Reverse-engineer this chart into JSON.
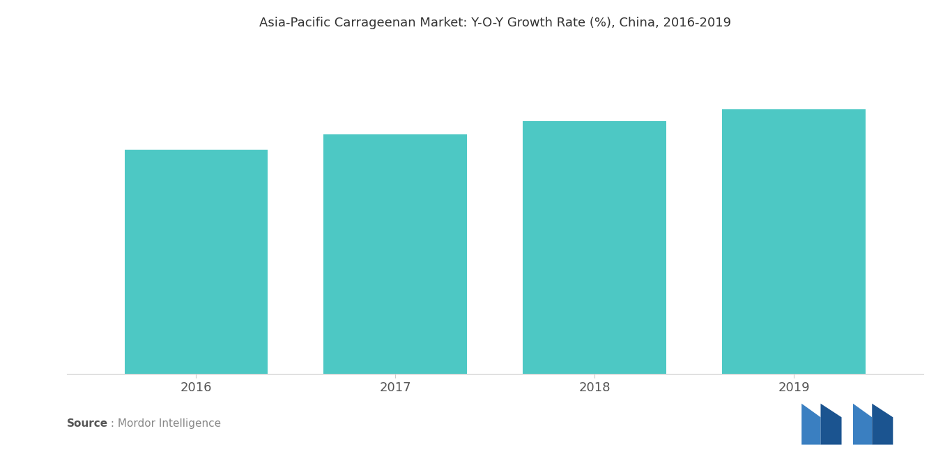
{
  "title": "Asia-Pacific Carrageenan Market: Y-O-Y Growth Rate (%), China, 2016-2019",
  "categories": [
    "2016",
    "2017",
    "2018",
    "2019"
  ],
  "values": [
    5.8,
    6.2,
    6.55,
    6.85
  ],
  "bar_color": "#4DC8C4",
  "ylim": [
    0,
    8.5
  ],
  "background_color": "#ffffff",
  "title_fontsize": 13,
  "tick_fontsize": 13,
  "source_bold": "Source",
  "source_regular": " : Mordor Intelligence",
  "logo_colors": [
    "#3A7FC1",
    "#1B5490",
    "#3A7FC1",
    "#1B5490"
  ]
}
